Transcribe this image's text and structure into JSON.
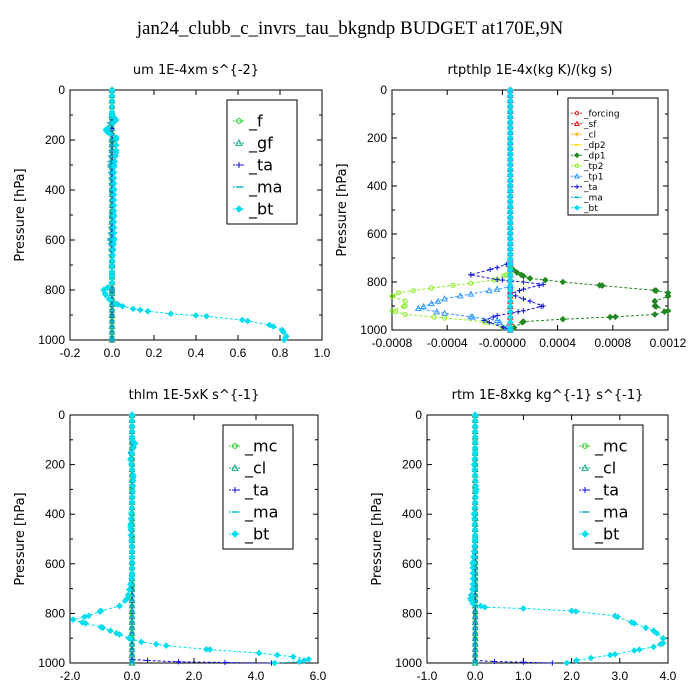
{
  "figure_title": "jan24_clubb_c_invrs_tau_bkgndp  BUDGET at170E,9N",
  "colors": {
    "green": "#22cc22",
    "teal": "#11aa88",
    "blue": "#1010dd",
    "cyan_dash": "#00aacc",
    "cyan": "#00ddee",
    "red": "#ee2222",
    "orange": "#ffaa00",
    "yellow": "#ffdd00",
    "lightgreen": "#88ee22",
    "azure": "#3399ff",
    "darkgreen": "#228822"
  },
  "chart_data": [
    {
      "type": "line",
      "title": "um   1E-4xm s^{-2}",
      "ylabel": "Pressure [hPa]",
      "xlim": [
        -0.2,
        1.0
      ],
      "ylim": [
        0,
        1000
      ],
      "y_inverted": true,
      "xticks": [
        "-0.2",
        "0.0",
        "0.2",
        "0.4",
        "0.6",
        "0.8",
        "1.0"
      ],
      "yticks": [
        "0",
        "200",
        "400",
        "600",
        "800",
        "1000"
      ],
      "legend": "top-right",
      "legend_size": "large",
      "series": [
        {
          "name": "_f",
          "color": "green",
          "x": [
            0.0,
            0.0,
            0.0,
            0.0,
            0.0,
            0.0,
            0.0,
            0.0,
            0.0,
            0.0,
            0.0
          ],
          "y": [
            0,
            100,
            200,
            300,
            400,
            500,
            600,
            700,
            800,
            900,
            1000
          ]
        },
        {
          "name": "_gf",
          "color": "teal",
          "x": [
            0.0,
            0.0,
            0.0,
            0.0,
            0.0,
            0.0,
            0.0,
            0.0,
            0.0,
            0.0,
            0.0
          ],
          "y": [
            0,
            100,
            200,
            300,
            400,
            500,
            600,
            700,
            800,
            900,
            1000
          ]
        },
        {
          "name": "_ta",
          "color": "blue",
          "x": [
            0.0,
            0.0,
            0.0,
            0.0,
            0.0,
            0.0,
            0.0,
            0.0,
            0.0,
            0.0,
            0.0
          ],
          "y": [
            0,
            100,
            200,
            300,
            400,
            500,
            600,
            700,
            800,
            900,
            1000
          ]
        },
        {
          "name": "_ma",
          "color": "cyan_dash",
          "x": [
            0.0,
            0.0,
            -0.02,
            0.0,
            -0.01,
            0.0,
            0.0,
            -0.01,
            0.0,
            0.0,
            0.0
          ],
          "y": [
            0,
            100,
            150,
            200,
            300,
            400,
            500,
            600,
            700,
            800,
            1000
          ]
        },
        {
          "name": "_bt",
          "color": "cyan",
          "x": [
            0.0,
            0.0,
            0.02,
            -0.03,
            -0.02,
            0.02,
            0.02,
            0.01,
            0.01,
            0.01,
            0.01,
            0.0,
            0.0,
            0.0,
            -0.02,
            -0.04,
            -0.03,
            -0.01,
            0.02,
            0.05,
            0.1,
            0.17,
            0.28,
            0.45,
            0.62,
            0.75,
            0.81,
            0.83,
            0.82
          ],
          "y": [
            0,
            100,
            120,
            160,
            170,
            190,
            250,
            300,
            400,
            500,
            600,
            700,
            740,
            770,
            790,
            800,
            820,
            840,
            855,
            865,
            875,
            885,
            895,
            905,
            920,
            940,
            960,
            985,
            1000
          ]
        }
      ]
    },
    {
      "type": "line",
      "title": "rtpthlp   1E-4x(kg K)/(kg s)",
      "ylabel": "Pressure [hPa]",
      "xlim": [
        -0.0009,
        0.0012
      ],
      "ylim": [
        0,
        1000
      ],
      "y_inverted": true,
      "xticks": [
        "-0.0008",
        "-0.0004",
        "-0.00000",
        "0.0004",
        "0.0008",
        "0.0012"
      ],
      "yticks": [
        "0",
        "200",
        "400",
        "600",
        "800",
        "1000"
      ],
      "legend": "top-right",
      "legend_size": "small",
      "series": [
        {
          "name": "_forcing",
          "color": "red",
          "x": [
            0.0,
            0.0
          ],
          "y": [
            0,
            1000
          ]
        },
        {
          "name": "_sf",
          "color": "red",
          "x": [
            0.0,
            0.0
          ],
          "y": [
            0,
            1000
          ]
        },
        {
          "name": "_cl",
          "color": "orange",
          "x": [
            0.0,
            0.0
          ],
          "y": [
            0,
            1000
          ]
        },
        {
          "name": "_dp2",
          "color": "yellow",
          "x": [
            0.0,
            0.0
          ],
          "y": [
            0,
            1000
          ]
        },
        {
          "name": "_dp1",
          "color": "darkgreen",
          "x": [
            0.0,
            0.0,
            5e-05,
            0.0001,
            0.00015,
            0.0004,
            0.0007,
            0.0011,
            0.0012,
            0.0012,
            0.0011,
            0.0011,
            0.0012,
            0.0011,
            0.0008,
            0.0004,
            0.0001,
            0.0
          ],
          "y": [
            0,
            740,
            760,
            775,
            785,
            800,
            815,
            835,
            845,
            860,
            880,
            900,
            920,
            935,
            945,
            955,
            965,
            1000
          ]
        },
        {
          "name": "_tp2",
          "color": "lightgreen",
          "x": [
            0.0,
            0.0,
            0.0,
            -5e-05,
            -0.0001,
            -0.0003,
            -0.0006,
            -0.00085,
            -0.0009,
            -0.0008,
            -0.0008,
            -0.0009,
            -0.0008,
            -0.0005,
            -0.0002,
            0.0
          ],
          "y": [
            0,
            740,
            760,
            775,
            790,
            805,
            825,
            845,
            860,
            880,
            900,
            920,
            935,
            950,
            965,
            1000
          ]
        },
        {
          "name": "_tp1",
          "color": "azure",
          "x": [
            0.0,
            0.0,
            -0.0001,
            -0.0003,
            -0.0005,
            -0.0006,
            -0.0007,
            -0.0005,
            -0.0003,
            -0.0001,
            0.0
          ],
          "y": [
            0,
            820,
            830,
            850,
            870,
            890,
            910,
            930,
            945,
            960,
            1000
          ]
        },
        {
          "name": "_ta",
          "color": "blue",
          "x": [
            0.0,
            0.0,
            -0.0001,
            -0.0003,
            -0.0001,
            0.0001,
            0.00025,
            0.0001,
            0.0,
            0.0001,
            0.00025,
            0.0001,
            -0.0001,
            -0.0002,
            0.0
          ],
          "y": [
            0,
            720,
            740,
            770,
            790,
            800,
            810,
            830,
            850,
            870,
            900,
            920,
            940,
            960,
            1000
          ]
        },
        {
          "name": "_ma",
          "color": "cyan_dash",
          "x": [
            0.0,
            0.0
          ],
          "y": [
            0,
            1000
          ]
        },
        {
          "name": "_bt",
          "color": "cyan",
          "x": [
            0.0,
            0.0
          ],
          "y": [
            0,
            1000
          ]
        }
      ]
    },
    {
      "type": "line",
      "title": "thlm   1E-5xK s^{-1}",
      "ylabel": "Pressure [hPa]",
      "xlim": [
        -2.0,
        6.0
      ],
      "ylim": [
        0,
        1000
      ],
      "y_inverted": true,
      "xticks": [
        "-2.0",
        "0.0",
        "2.0",
        "4.0",
        "6.0"
      ],
      "yticks": [
        "0",
        "200",
        "400",
        "600",
        "800",
        "1000"
      ],
      "legend": "top-right",
      "legend_size": "large",
      "series": [
        {
          "name": "_mc",
          "color": "green",
          "x": [
            0.0,
            0.0,
            0.0,
            0.0,
            0.0,
            0.0,
            0.0,
            0.0,
            0.0,
            0.0,
            0.0
          ],
          "y": [
            0,
            100,
            200,
            300,
            400,
            500,
            600,
            700,
            800,
            900,
            1000
          ]
        },
        {
          "name": "_cl",
          "color": "teal",
          "x": [
            0.0,
            0.0
          ],
          "y": [
            0,
            1000
          ]
        },
        {
          "name": "_ta",
          "color": "blue",
          "x": [
            0.0,
            0.0,
            0.5,
            1.5,
            3.0,
            4.5
          ],
          "y": [
            0,
            985,
            990,
            995,
            998,
            1000
          ]
        },
        {
          "name": "_ma",
          "color": "cyan_dash",
          "x": [
            0.0,
            0.0,
            0.05,
            -0.05,
            0.0,
            0.0,
            0.0,
            0.0
          ],
          "y": [
            0,
            100,
            120,
            150,
            200,
            400,
            600,
            1000
          ]
        },
        {
          "name": "_bt",
          "color": "cyan",
          "x": [
            0.0,
            0.0,
            0.1,
            0.05,
            -0.05,
            0.05,
            0.0,
            -0.05,
            0.0,
            0.0,
            -0.15,
            -0.4,
            -1.0,
            -1.4,
            -1.9,
            -1.5,
            -1.0,
            -0.7,
            -0.4,
            -0.1,
            0.3,
            1.1,
            2.4,
            4.1,
            5.2,
            5.7,
            5.4,
            4.6
          ],
          "y": [
            0,
            100,
            115,
            130,
            180,
            250,
            350,
            450,
            550,
            650,
            740,
            770,
            790,
            810,
            825,
            840,
            855,
            870,
            885,
            900,
            915,
            930,
            945,
            960,
            975,
            985,
            995,
            1000
          ]
        }
      ]
    },
    {
      "type": "line",
      "title": "rtm   1E-8xkg kg^{-1} s^{-1}",
      "ylabel": "Pressure [hPa]",
      "xlim": [
        -1.0,
        4.0
      ],
      "ylim": [
        0,
        1000
      ],
      "y_inverted": true,
      "xticks": [
        "-1.0",
        "0.0",
        "1.0",
        "2.0",
        "3.0",
        "4.0"
      ],
      "yticks": [
        "0",
        "200",
        "400",
        "600",
        "800",
        "1000"
      ],
      "legend": "top-right",
      "legend_size": "large",
      "series": [
        {
          "name": "_mc",
          "color": "green",
          "x": [
            0.0,
            0.0,
            0.0,
            0.0,
            0.0,
            0.0,
            0.0,
            0.0,
            0.0,
            0.0,
            0.0
          ],
          "y": [
            0,
            100,
            200,
            300,
            400,
            500,
            600,
            700,
            800,
            900,
            1000
          ]
        },
        {
          "name": "_cl",
          "color": "teal",
          "x": [
            0.0,
            0.0
          ],
          "y": [
            0,
            1000
          ]
        },
        {
          "name": "_ta",
          "color": "blue",
          "x": [
            0.0,
            0.0,
            0.4,
            1.0,
            1.6
          ],
          "y": [
            0,
            990,
            994,
            997,
            1000
          ]
        },
        {
          "name": "_ma",
          "color": "cyan_dash",
          "x": [
            0.0,
            0.0,
            0.0,
            0.0
          ],
          "y": [
            0,
            400,
            700,
            1000
          ]
        },
        {
          "name": "_bt",
          "color": "cyan",
          "x": [
            0.0,
            0.0,
            -0.02,
            0.02,
            -0.02,
            0.0,
            -0.05,
            -0.05,
            -0.1,
            -0.05,
            0.2,
            1.0,
            2.0,
            2.9,
            3.3,
            3.7,
            3.9,
            3.9,
            3.7,
            3.3,
            2.9,
            2.4,
            2.1,
            1.9
          ],
          "y": [
            0,
            150,
            200,
            300,
            400,
            500,
            600,
            700,
            740,
            760,
            775,
            780,
            790,
            810,
            840,
            870,
            900,
            920,
            935,
            950,
            965,
            980,
            990,
            1000
          ]
        }
      ]
    }
  ]
}
